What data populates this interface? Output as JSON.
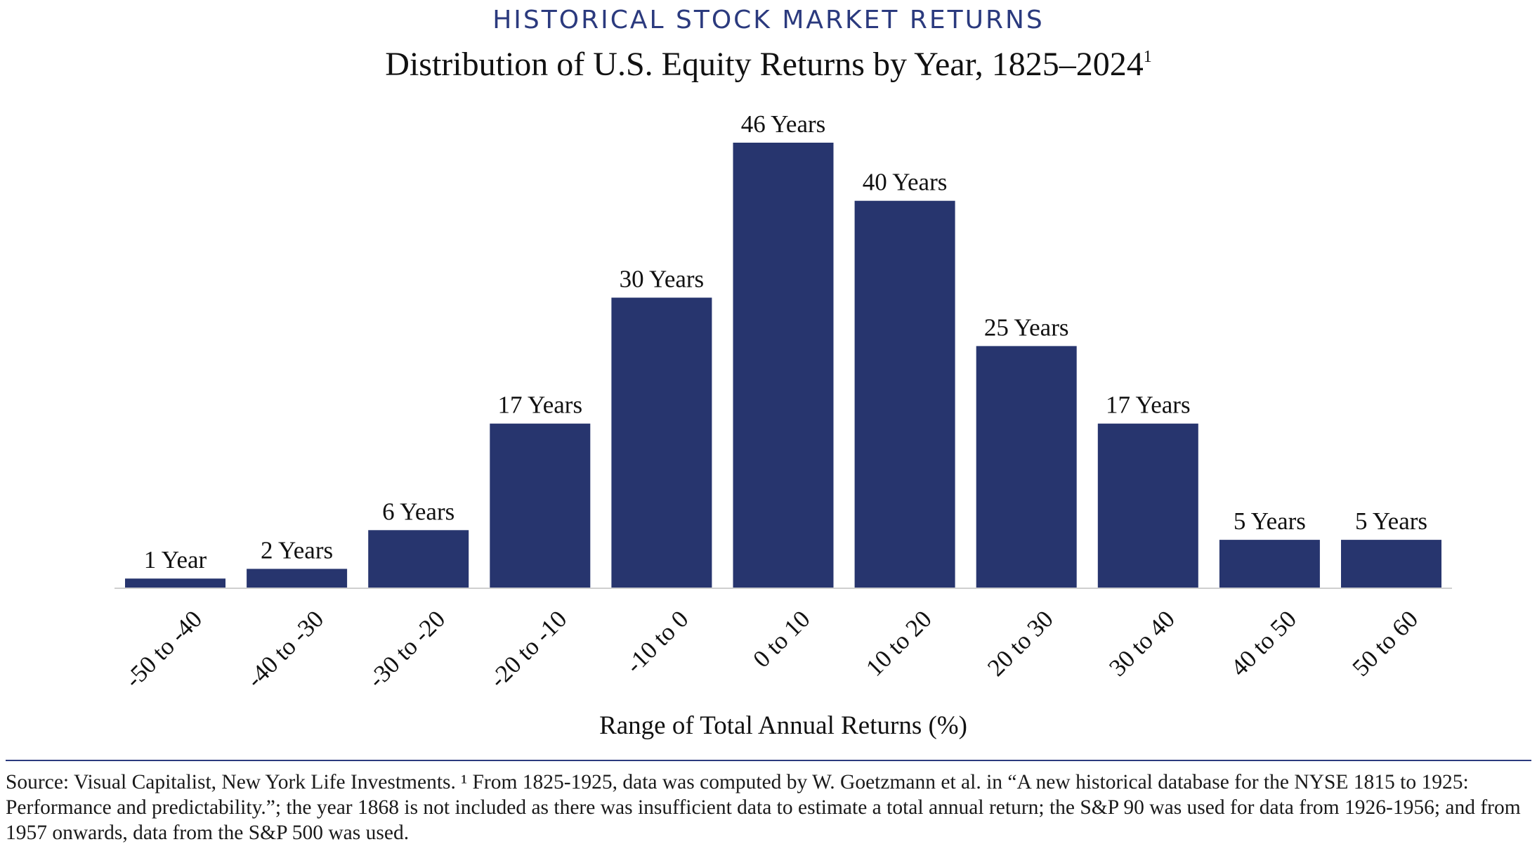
{
  "header": {
    "kicker": "HISTORICAL STOCK MARKET RETURNS",
    "title": "Distribution of U.S. Equity Returns by Year, 1825–2024",
    "title_footnote_marker": "1"
  },
  "chart_data": {
    "type": "bar",
    "categories": [
      "-50 to -40",
      "-40 to -30",
      "-30 to -20",
      "-20 to -10",
      "-10 to 0",
      "0 to 10",
      "10 to 20",
      "20 to 30",
      "30 to 40",
      "40 to 50",
      "50 to 60"
    ],
    "values": [
      1,
      2,
      6,
      17,
      30,
      46,
      40,
      25,
      17,
      5,
      5
    ],
    "data_labels": [
      "1 Year",
      "2 Years",
      "6 Years",
      "17 Years",
      "30 Years",
      "46 Years",
      "40 Years",
      "25 Years",
      "17 Years",
      "5 Years",
      "5 Years"
    ],
    "xlabel": "Range of Total Annual Returns (%)",
    "ylabel": "",
    "ylim": [
      0,
      46
    ],
    "grid": false,
    "legend": "none",
    "bar_color": "#27356e",
    "axis_color": "#cfcfcf"
  },
  "footnote": "Source: Visual Capitalist, New York Life Investments. ¹  From 1825-1925, data was computed by W. Goetzmann et al. in “A new historical database for the NYSE 1815 to 1925: Performance and predictability.”; the year 1868 is not included as there was insufficient data to estimate a total annual return; the S&P 90 was used for data from 1926-1956; and from 1957 onwards, data from the S&P 500 was used.",
  "colors": {
    "accent": "#2b3a7e",
    "bar": "#27356e"
  }
}
